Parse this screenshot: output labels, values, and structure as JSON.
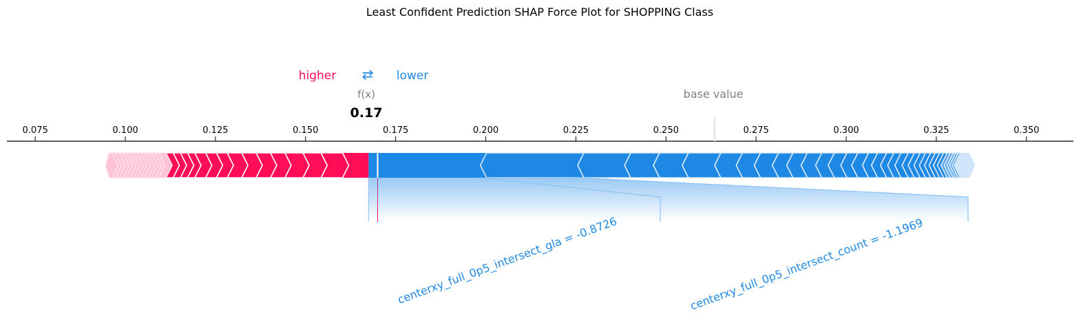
{
  "chart_data": {
    "type": "force",
    "title": "Least Confident Prediction SHAP Force Plot for SHOPPING Class",
    "legend": {
      "higher": "higher",
      "arrows": "⇄",
      "lower": "lower"
    },
    "fx_label": "f(x)",
    "fx_value": 0.17,
    "fx_display": "0.17",
    "base_value_label": "base value",
    "base_value": 0.2635,
    "x_ticks": [
      0.075,
      0.1,
      0.125,
      0.15,
      0.175,
      0.2,
      0.225,
      0.25,
      0.275,
      0.3,
      0.325,
      0.35
    ],
    "x_tick_labels": [
      "0.075",
      "0.100",
      "0.125",
      "0.150",
      "0.175",
      "0.200",
      "0.225",
      "0.250",
      "0.275",
      "0.300",
      "0.325",
      "0.350"
    ],
    "xlim": [
      0.0675,
      0.363
    ],
    "positive_range": [
      0.0955,
      0.1675
    ],
    "negative_range": [
      0.1675,
      0.335
    ],
    "positive_segments": [
      0.1675,
      0.162,
      0.156,
      0.151,
      0.146,
      0.142,
      0.138,
      0.134,
      0.13,
      0.127,
      0.124,
      0.121,
      0.119,
      0.117,
      0.115,
      0.113,
      0.111,
      0.11,
      0.109,
      0.108,
      0.107,
      0.106,
      0.105,
      0.104,
      0.103,
      0.102,
      0.101,
      0.1,
      0.099,
      0.098,
      0.0955
    ],
    "negative_segments": [
      0.1675,
      0.1985,
      0.2255,
      0.2385,
      0.2465,
      0.2545,
      0.2635,
      0.2695,
      0.2745,
      0.2795,
      0.2835,
      0.2875,
      0.2915,
      0.295,
      0.2985,
      0.3015,
      0.3045,
      0.307,
      0.3095,
      0.3115,
      0.3135,
      0.3155,
      0.3172,
      0.3188,
      0.3203,
      0.3217,
      0.323,
      0.3242,
      0.3253,
      0.3263,
      0.3272,
      0.328,
      0.3287,
      0.3294,
      0.33,
      0.335
    ],
    "annotations": [
      {
        "feature": "centerxy_full_0p5_intersect_gla",
        "value": -0.8726,
        "text": "centerxy_full_0p5_intersect_gla = -0.8726",
        "from": 0.1675,
        "to": 0.1985
      },
      {
        "feature": "centerxy_full_0p5_intersect_count",
        "value": -1.1969,
        "text": "centerxy_full_0p5_intersect_count = -1.1969",
        "from": 0.1985,
        "to": 0.2255
      }
    ],
    "colors": {
      "higher": "#ff0d57",
      "higher_fade": "#ffc3d5",
      "lower": "#1e88e5",
      "lower_fade": "#d1e6fa",
      "annotation_line": "#8cc1f0",
      "base_value_text": "#808080",
      "fx_text": "#808080"
    }
  }
}
